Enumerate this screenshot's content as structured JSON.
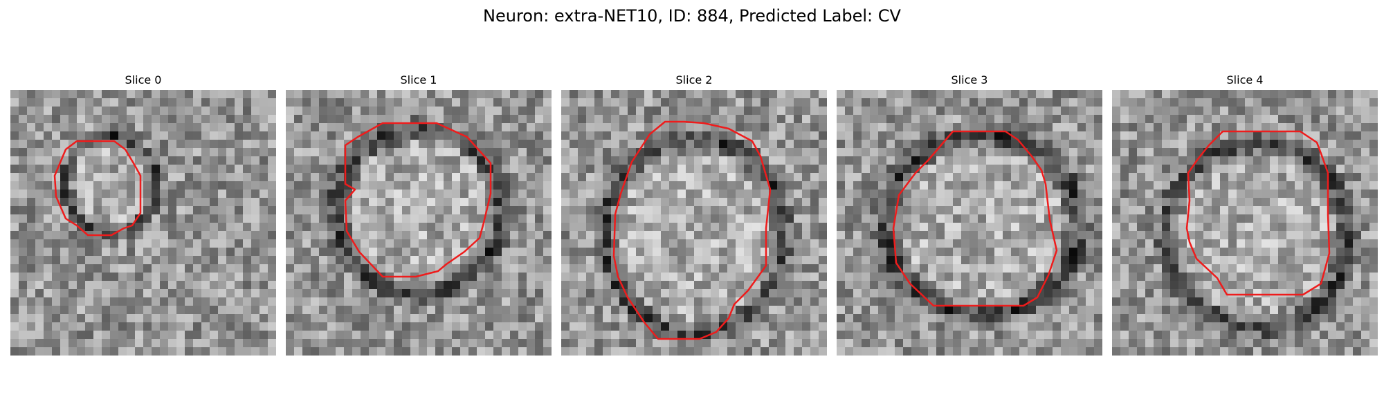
{
  "figure": {
    "title": "Neuron: extra-NET10, ID: 884, Predicted Label: CV"
  },
  "colors": {
    "background": "#ffffff",
    "contour": "#ee1c1c",
    "image_dark": "#111111",
    "image_light": "#eeeeee"
  },
  "slices": [
    {
      "title": "Slice 0"
    },
    {
      "title": "Slice 1"
    },
    {
      "title": "Slice 2"
    },
    {
      "title": "Slice 3"
    },
    {
      "title": "Slice 4"
    }
  ]
}
